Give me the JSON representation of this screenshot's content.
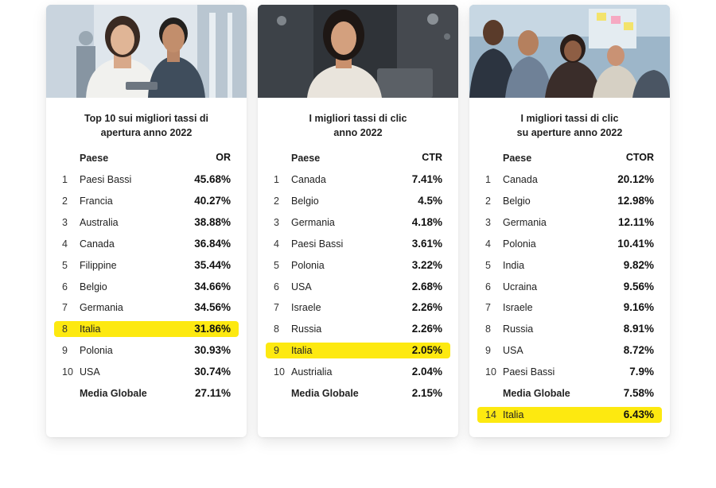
{
  "chart_data": [
    {
      "type": "table",
      "title_lines": [
        "Top 10 sui migliori tassi di",
        "apertura anno 2022"
      ],
      "columns": [
        "Paese",
        "OR"
      ],
      "rows": [
        {
          "rank": "1",
          "country": "Paesi Bassi",
          "value": "45.68%"
        },
        {
          "rank": "2",
          "country": "Francia",
          "value": "40.27%"
        },
        {
          "rank": "3",
          "country": "Australia",
          "value": "38.88%"
        },
        {
          "rank": "4",
          "country": "Canada",
          "value": "36.84%"
        },
        {
          "rank": "5",
          "country": "Filippine",
          "value": "35.44%"
        },
        {
          "rank": "6",
          "country": "Belgio",
          "value": "34.66%"
        },
        {
          "rank": "7",
          "country": "Germania",
          "value": "34.56%"
        },
        {
          "rank": "8",
          "country": "Italia",
          "value": "31.86%",
          "highlight": true
        },
        {
          "rank": "9",
          "country": "Polonia",
          "value": "30.93%"
        },
        {
          "rank": "10",
          "country": "USA",
          "value": "30.74%"
        },
        {
          "rank": "",
          "country": "Media Globale",
          "value": "27.11%",
          "bold": true
        }
      ]
    },
    {
      "type": "table",
      "title_lines": [
        "I migliori tassi di clic",
        "anno 2022"
      ],
      "columns": [
        "Paese",
        "CTR"
      ],
      "rows": [
        {
          "rank": "1",
          "country": "Canada",
          "value": "7.41%"
        },
        {
          "rank": "2",
          "country": "Belgio",
          "value": "4.5%"
        },
        {
          "rank": "3",
          "country": "Germania",
          "value": "4.18%"
        },
        {
          "rank": "4",
          "country": "Paesi Bassi",
          "value": "3.61%"
        },
        {
          "rank": "5",
          "country": "Polonia",
          "value": "3.22%"
        },
        {
          "rank": "6",
          "country": "USA",
          "value": "2.68%"
        },
        {
          "rank": "7",
          "country": "Israele",
          "value": "2.26%"
        },
        {
          "rank": "8",
          "country": "Russia",
          "value": "2.26%"
        },
        {
          "rank": "9",
          "country": "Italia",
          "value": "2.05%",
          "highlight": true
        },
        {
          "rank": "10",
          "country": "Austrialia",
          "value": "2.04%"
        },
        {
          "rank": "",
          "country": "Media Globale",
          "value": "2.15%",
          "bold": true
        }
      ]
    },
    {
      "type": "table",
      "title_lines": [
        "I migliori tassi di clic",
        "su aperture anno 2022"
      ],
      "columns": [
        "Paese",
        "CTOR"
      ],
      "rows": [
        {
          "rank": "1",
          "country": "Canada",
          "value": "20.12%"
        },
        {
          "rank": "2",
          "country": "Belgio",
          "value": "12.98%"
        },
        {
          "rank": "3",
          "country": "Germania",
          "value": "12.11%"
        },
        {
          "rank": "4",
          "country": "Polonia",
          "value": "10.41%"
        },
        {
          "rank": "5",
          "country": "India",
          "value": "9.82%"
        },
        {
          "rank": "6",
          "country": "Ucraina",
          "value": "9.56%"
        },
        {
          "rank": "7",
          "country": "Israele",
          "value": "9.16%"
        },
        {
          "rank": "8",
          "country": "Russia",
          "value": "8.91%"
        },
        {
          "rank": "9",
          "country": "USA",
          "value": "8.72%"
        },
        {
          "rank": "10",
          "country": "Paesi Bassi",
          "value": "7.9%"
        },
        {
          "rank": "",
          "country": "Media Globale",
          "value": "7.58%",
          "bold": true
        },
        {
          "rank": "14",
          "country": "Italia",
          "value": "6.43%",
          "highlight": true
        }
      ]
    }
  ],
  "colors": {
    "highlight": "#fde910"
  }
}
